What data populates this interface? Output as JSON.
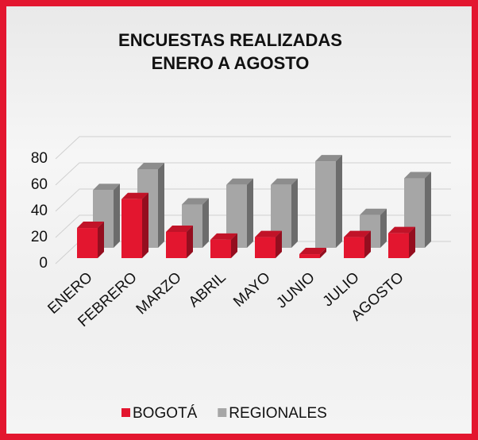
{
  "chart_data": {
    "type": "bar3d",
    "title": [
      "ENCUESTAS REALIZADAS",
      "ENERO A AGOSTO"
    ],
    "categories": [
      "ENERO",
      "FEBRERO",
      "MARZO",
      "ABRIL",
      "MAYO",
      "JUNIO",
      "JULIO",
      "AGOSTO"
    ],
    "series": [
      {
        "name": "BOGOTÁ",
        "color": "#e3162f",
        "values": [
          23,
          45,
          20,
          14,
          16,
          3,
          16,
          19
        ]
      },
      {
        "name": "REGIONALES",
        "color": "#a6a6a6",
        "values": [
          44,
          60,
          33,
          48,
          48,
          66,
          25,
          53
        ]
      }
    ],
    "ylim": [
      0,
      80
    ],
    "yticks": [
      0,
      20,
      40,
      60,
      80
    ],
    "grid": true,
    "legend": "bottom"
  }
}
